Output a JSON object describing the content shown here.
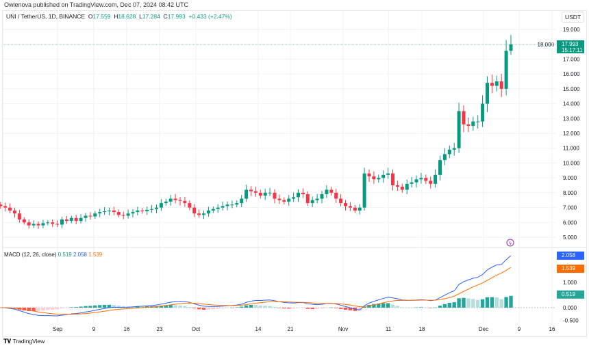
{
  "published": "Owlenova published on TradingView.com, Dec 07, 2024 08:42 UTC",
  "legend": {
    "symbol": "UNI / TetherUS, 1D, BINANCE",
    "o_label": "O",
    "o": "17.559",
    "h_label": "H",
    "h": "18.628",
    "l_label": "L",
    "l": "17.284",
    "c_label": "C",
    "c": "17.993",
    "change": "+0.433 (+2.47%)"
  },
  "currency": "USDT",
  "last_price": "17.993",
  "countdown": "15:17:11",
  "price_ticks": [
    "19.000",
    "18.000",
    "17.000",
    "16.000",
    "15.000",
    "14.000",
    "13.000",
    "12.000",
    "11.000",
    "10.000",
    "9.000",
    "8.000",
    "7.000",
    "6.000",
    "5.000"
  ],
  "macd": {
    "label": "MACD (12, 26, close)",
    "hist": "0.519",
    "macd": "2.058",
    "signal": "1.539",
    "ticks": [
      "1.000",
      "0.000",
      "-0.500"
    ]
  },
  "date_ticks": [
    "Sep",
    "9",
    "16",
    "23",
    "Oct",
    "14",
    "21",
    "Nov",
    "11",
    "18",
    "Dec",
    "9",
    "16"
  ],
  "brand": "TradingView",
  "colors": {
    "up": "#089981",
    "down": "#f23645",
    "macd": "#2962ff",
    "signal": "#ff6d00"
  },
  "chart_data": {
    "type": "candlestick",
    "start_date": "2024-08-21",
    "end_date": "2024-12-07",
    "ylim": [
      5,
      19
    ],
    "closes": [
      7.1,
      7.0,
      6.8,
      6.6,
      6.2,
      6.0,
      5.8,
      5.9,
      5.8,
      5.95,
      6.0,
      5.9,
      5.85,
      6.2,
      6.1,
      6.3,
      6.1,
      6.3,
      6.45,
      6.4,
      6.6,
      6.7,
      6.75,
      6.8,
      6.7,
      6.5,
      6.45,
      6.6,
      6.7,
      6.8,
      6.75,
      6.85,
      6.9,
      7.0,
      7.3,
      7.4,
      7.6,
      7.5,
      7.45,
      7.3,
      7.0,
      6.6,
      6.5,
      6.6,
      6.8,
      6.9,
      7.0,
      7.1,
      7.2,
      7.2,
      7.3,
      7.6,
      8.2,
      8.1,
      8.0,
      7.8,
      8.0,
      8.0,
      7.6,
      7.5,
      7.4,
      7.6,
      7.7,
      8.0,
      7.9,
      7.3,
      7.5,
      7.6,
      7.9,
      8.2,
      8.0,
      7.6,
      7.3,
      7.1,
      7.0,
      6.8,
      7.0,
      9.3,
      9.1,
      8.9,
      9.0,
      9.2,
      9.3,
      8.5,
      8.4,
      8.2,
      8.6,
      8.7,
      8.9,
      9.0,
      8.8,
      8.6,
      9.2,
      10.2,
      10.6,
      10.9,
      11.0,
      13.5,
      12.6,
      12.5,
      12.8,
      12.8,
      14.0,
      15.4,
      15.2,
      15.5,
      15.0,
      17.559,
      17.993
    ],
    "last_candle": {
      "open": 17.559,
      "high": 18.628,
      "low": 17.284,
      "close": 17.993
    }
  }
}
